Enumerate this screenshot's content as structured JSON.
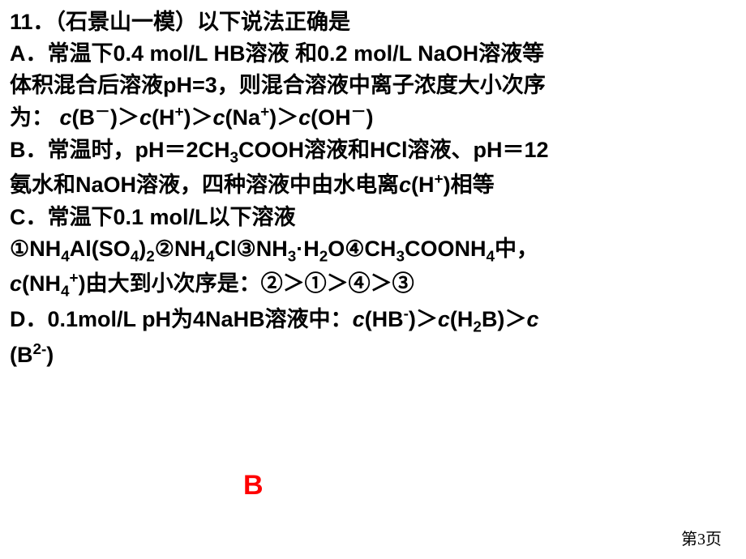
{
  "question": {
    "number": "11．",
    "source": "（石景山一模）",
    "stem": "以下说法正确是"
  },
  "options": {
    "A": {
      "label": "A．",
      "line1_pre": "常温下0.4 mol/L HB溶液 和0.2 mol/L NaOH溶液等",
      "line2": "体积混合后溶液pH=3，则混合溶液中离子浓度大小次序",
      "line3_pre": "为：  ",
      "seq_b_minus": "(B",
      "seq_h_plus": "(H",
      "seq_na_plus": "(Na",
      "seq_oh_minus": "(OH",
      "gt": "＞",
      "close": ")"
    },
    "B": {
      "label": "B．",
      "line1": "常温时，pH＝2CH",
      "line1_mid": "COOH溶液和HCl溶液、pH＝12",
      "line2_pre": "氨水和NaOH溶液，四种溶液中由水电离",
      "line2_post": "相等",
      "h_plus": "(H"
    },
    "C": {
      "label": "C．",
      "line1": "常温下0.1 mol/L以下溶液",
      "line2_1": "①NH",
      "line2_2": "Al(SO",
      "line2_3": "②NH",
      "line2_4": "Cl③NH",
      "line2_5": "·H",
      "line2_6": "O④CH",
      "line2_7": "COONH",
      "line2_8": "中，",
      "line3_pre": "(NH",
      "line3_post": "由大到小次序是：②＞①＞④＞③"
    },
    "D": {
      "label": "D．",
      "line1_pre": "0.1mol/L pH为4NaHB溶液中：",
      "hb_minus": "(HB",
      "h2b": "(H",
      "h2b_post": "B)",
      "b2_minus": "(B",
      "gt": "＞",
      "close": ")"
    }
  },
  "answer": "B",
  "pageNum": "第3页",
  "symbols": {
    "c": "c",
    "sup_plus": "+",
    "sup_minus": "－",
    "sup_minus2": "-",
    "sup_2minus": "2-",
    "sub_2": "2",
    "sub_3": "3",
    "sub_4": "4",
    "close_gt": ")＞"
  }
}
